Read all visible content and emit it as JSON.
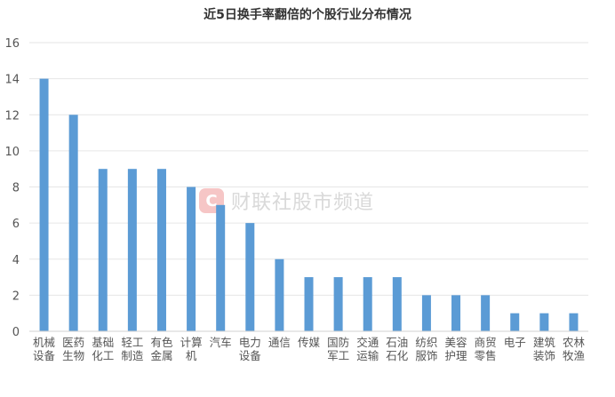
{
  "chart_data": {
    "type": "bar",
    "title": "近5日换手率翻倍的个股行业分布情况",
    "xlabel": "",
    "ylabel": "",
    "ylim": [
      0,
      16
    ],
    "yticks": [
      0,
      2,
      4,
      6,
      8,
      10,
      12,
      14,
      16
    ],
    "grid": true,
    "legend": "none",
    "bar_color": "#5b9bd5",
    "categories": [
      "机械设备",
      "医药生物",
      "基础化工",
      "轻工制造",
      "有色金属",
      "计算机",
      "汽车",
      "电力设备",
      "通信",
      "传媒",
      "国防军工",
      "交通运输",
      "石油石化",
      "纺织服饰",
      "美容护理",
      "商贸零售",
      "电子",
      "建筑装饰",
      "农林牧渔"
    ],
    "values": [
      14,
      12,
      9,
      9,
      9,
      8,
      7,
      6,
      4,
      3,
      3,
      3,
      3,
      2,
      2,
      2,
      1,
      1,
      1
    ]
  },
  "watermark": {
    "text": "财联社股市频道",
    "icon": "cls-logo-icon",
    "color": "#f4b8b8"
  }
}
